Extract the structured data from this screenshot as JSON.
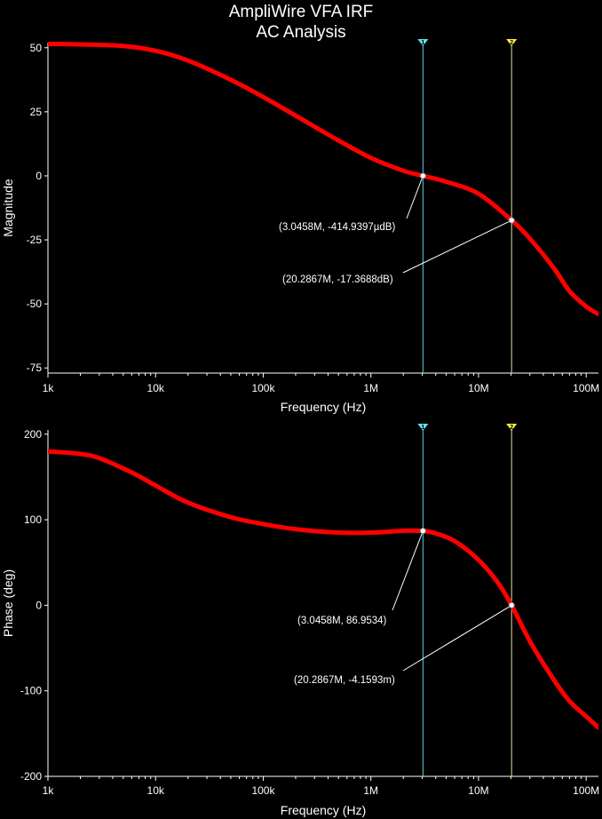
{
  "title_line1": "AmpliWire VFA IRF",
  "title_line2": "AC Analysis",
  "colors": {
    "background": "#000000",
    "trace": "#ff0000",
    "cursor_a": "#5fd0e0",
    "cursor_b": "#e8e08a",
    "cursor_a_marker": "#66ddee",
    "cursor_b_marker": "#ffee44"
  },
  "cursor_labels": {
    "a": "1",
    "b": "2"
  },
  "chart_data": [
    {
      "type": "line",
      "xscale": "log",
      "xlim": [
        1000,
        130000000
      ],
      "ylim": [
        -77,
        52
      ],
      "xlabel": "Frequency (Hz)",
      "ylabel": "Magnitude",
      "x_ticks": [
        1000,
        10000,
        100000,
        1000000,
        10000000,
        100000000
      ],
      "x_tick_labels": [
        "1k",
        "10k",
        "100k",
        "1M",
        "10M",
        "100M"
      ],
      "y_ticks": [
        50,
        25,
        0,
        -25,
        -50,
        -75
      ],
      "y_tick_labels": [
        "50",
        "25",
        "0",
        "-25",
        "-50",
        "-75"
      ],
      "grid": false,
      "series": [
        {
          "x": [
            1000,
            2000,
            5000,
            10000,
            20000,
            50000,
            100000,
            200000,
            500000,
            1000000,
            2000000,
            3045800,
            5000000,
            10000000,
            20286700,
            30000000,
            50000000,
            70000000,
            100000000,
            130000000
          ],
          "y": [
            51.5,
            51.3,
            50.7,
            48.8,
            45.0,
            37.5,
            30.8,
            23.5,
            13.8,
            7.0,
            2.0,
            0.0,
            -2.3,
            -7.0,
            -17.37,
            -24.5,
            -36.0,
            -45.0,
            -51.0,
            -54.0
          ]
        }
      ],
      "cursors": [
        {
          "x": 3045800,
          "y": 0.0,
          "label": "(3.0458M, -414.9397µdB)"
        },
        {
          "x": 20286700,
          "y": -17.3688,
          "label": "(20.2867M, -17.3688dB)"
        }
      ]
    },
    {
      "type": "line",
      "xscale": "log",
      "xlim": [
        1000,
        130000000
      ],
      "ylim": [
        -200,
        205
      ],
      "xlabel": "Frequency (Hz)",
      "ylabel": "Phase (deg)",
      "x_ticks": [
        1000,
        10000,
        100000,
        1000000,
        10000000,
        100000000
      ],
      "x_tick_labels": [
        "1k",
        "10k",
        "100k",
        "1M",
        "10M",
        "100M"
      ],
      "y_ticks": [
        200,
        100,
        0,
        -100,
        -200
      ],
      "y_tick_labels": [
        "200",
        "100",
        "0",
        "-100",
        "-200"
      ],
      "grid": false,
      "series": [
        {
          "x": [
            1000,
            2000,
            3000,
            5000,
            7000,
            10000,
            20000,
            50000,
            100000,
            200000,
            500000,
            1000000,
            2000000,
            3045800,
            4000000,
            6000000,
            10000000,
            15000000,
            20286700,
            30000000,
            50000000,
            70000000,
            100000000,
            130000000
          ],
          "y": [
            180,
            177,
            172,
            160,
            151,
            140,
            120,
            103,
            95,
            89,
            85,
            85,
            87,
            86.95,
            84,
            75,
            53,
            27,
            0,
            -42,
            -87,
            -112,
            -130,
            -143
          ]
        }
      ],
      "cursors": [
        {
          "x": 3045800,
          "y": 86.9534,
          "label": "(3.0458M, 86.9534)"
        },
        {
          "x": 20286700,
          "y": -0.0041593,
          "label": "(20.2867M, -4.1593m)"
        }
      ]
    }
  ]
}
